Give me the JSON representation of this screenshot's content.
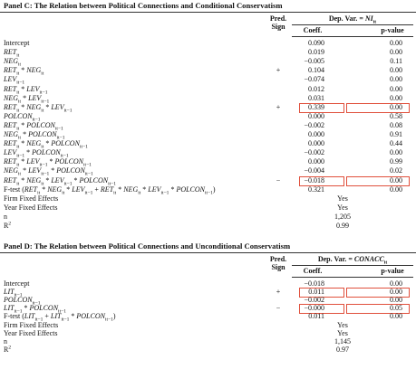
{
  "panels": [
    {
      "title": "Panel C: The Relation between Political Connections and Conditional Conservatism",
      "pred_sign_header": [
        "Pred.",
        "Sign"
      ],
      "dep_var": [
        "Dep. Var. = ",
        {
          "i": "NI"
        },
        {
          "sub": "it"
        }
      ],
      "columns": [
        "Coeff.",
        "p-value"
      ],
      "rows": [
        {
          "label": [
            "Intercept"
          ],
          "sign": "",
          "coeff": "0.090",
          "p": "0.00"
        },
        {
          "label": [
            {
              "i": "RET"
            },
            {
              "sub": "it"
            }
          ],
          "sign": "",
          "coeff": "0.019",
          "p": "0.00"
        },
        {
          "label": [
            {
              "i": "NEG"
            },
            {
              "sub": "it"
            }
          ],
          "sign": "",
          "coeff": "−0.005",
          "p": "0.11"
        },
        {
          "label": [
            {
              "i": "RET"
            },
            {
              "sub": "it"
            },
            " * ",
            {
              "i": "NEG"
            },
            {
              "sub": "it"
            }
          ],
          "sign": "+",
          "coeff": "0.104",
          "p": "0.00"
        },
        {
          "label": [
            {
              "i": "LEV"
            },
            {
              "sub": "it−1"
            }
          ],
          "sign": "",
          "coeff": "−0.074",
          "p": "0.00"
        },
        {
          "label": [
            {
              "i": "RET"
            },
            {
              "sub": "it"
            },
            " * ",
            {
              "i": "LEV"
            },
            {
              "sub": "it−1"
            }
          ],
          "sign": "",
          "coeff": "0.012",
          "p": "0.00"
        },
        {
          "label": [
            {
              "i": "NEG"
            },
            {
              "sub": "it"
            },
            " * ",
            {
              "i": "LEV"
            },
            {
              "sub": "it−1"
            }
          ],
          "sign": "",
          "coeff": "0.031",
          "p": "0.00"
        },
        {
          "label": [
            {
              "i": "RET"
            },
            {
              "sub": "it"
            },
            " * ",
            {
              "i": "NEG"
            },
            {
              "sub": "it"
            },
            " * ",
            {
              "i": "LEV"
            },
            {
              "sub": "it−1"
            }
          ],
          "sign": "+",
          "coeff": "0.339",
          "p": "0.00",
          "highlight": true
        },
        {
          "label": [
            {
              "i": "POLCON"
            },
            {
              "sub": "it−1"
            }
          ],
          "sign": "",
          "coeff": "0.000",
          "p": "0.58"
        },
        {
          "label": [
            {
              "i": "RET"
            },
            {
              "sub": "it"
            },
            " * ",
            {
              "i": "POLCON"
            },
            {
              "sub": "it−1"
            }
          ],
          "sign": "",
          "coeff": "−0.002",
          "p": "0.08"
        },
        {
          "label": [
            {
              "i": "NEG"
            },
            {
              "sub": "it"
            },
            " * ",
            {
              "i": "POLCON"
            },
            {
              "sub": "it−1"
            }
          ],
          "sign": "",
          "coeff": "0.000",
          "p": "0.91"
        },
        {
          "label": [
            {
              "i": "RET"
            },
            {
              "sub": "it"
            },
            " * ",
            {
              "i": "NEG"
            },
            {
              "sub": "it"
            },
            " * ",
            {
              "i": "POLCON"
            },
            {
              "sub": "it−1"
            }
          ],
          "sign": "",
          "coeff": "0.000",
          "p": "0.44"
        },
        {
          "label": [
            {
              "i": "LEV"
            },
            {
              "sub": "it−1"
            },
            " * ",
            {
              "i": "POLCON"
            },
            {
              "sub": "it−1"
            }
          ],
          "sign": "",
          "coeff": "−0.002",
          "p": "0.00"
        },
        {
          "label": [
            {
              "i": "RET"
            },
            {
              "sub": "it"
            },
            " * ",
            {
              "i": "LEV"
            },
            {
              "sub": "it−1"
            },
            " * ",
            {
              "i": "POLCON"
            },
            {
              "sub": "it−1"
            }
          ],
          "sign": "",
          "coeff": "0.000",
          "p": "0.99"
        },
        {
          "label": [
            {
              "i": "NEG"
            },
            {
              "sub": "it"
            },
            " * ",
            {
              "i": "LEV"
            },
            {
              "sub": "it−1"
            },
            " * ",
            {
              "i": "POLCON"
            },
            {
              "sub": "it−1"
            }
          ],
          "sign": "",
          "coeff": "−0.004",
          "p": "0.02"
        },
        {
          "label": [
            {
              "i": "RET"
            },
            {
              "sub": "it"
            },
            " * ",
            {
              "i": "NEG"
            },
            {
              "sub": "it"
            },
            " * ",
            {
              "i": "LEV"
            },
            {
              "sub": "it−1"
            },
            " * ",
            {
              "i": "POLCON"
            },
            {
              "sub": "it−1"
            }
          ],
          "sign": "−",
          "coeff": "−0.018",
          "p": "0.00",
          "highlight": true
        },
        {
          "label": [
            "F-test (",
            {
              "i": "RET"
            },
            {
              "sub": "it"
            },
            " * ",
            {
              "i": "NEG"
            },
            {
              "sub": "it"
            },
            " * ",
            {
              "i": "LEV"
            },
            {
              "sub": "it−1"
            },
            " + ",
            {
              "i": "RET"
            },
            {
              "sub": "it"
            },
            " * ",
            {
              "i": "NEG"
            },
            {
              "sub": "it"
            },
            " * ",
            {
              "i": "LEV"
            },
            {
              "sub": "it−1"
            },
            " * ",
            {
              "i": "POLCON"
            },
            {
              "sub": "it−1"
            },
            ")"
          ],
          "sign": "",
          "coeff": "0.321",
          "p": "0.00"
        }
      ],
      "footer": [
        {
          "label": [
            "Firm Fixed Effects"
          ],
          "value": "Yes"
        },
        {
          "label": [
            "Year Fixed Effects"
          ],
          "value": "Yes"
        },
        {
          "label": [
            "n"
          ],
          "value": "1,205"
        },
        {
          "label": [
            "R",
            {
              "sup": "2"
            }
          ],
          "value": "0.99"
        }
      ]
    },
    {
      "title": "Panel D: The Relation between Political Connections and Unconditional Conservatism",
      "pred_sign_header": [
        "Pred.",
        "Sign"
      ],
      "dep_var": [
        "Dep. Var. = ",
        {
          "i": "CONACC"
        },
        {
          "sub": "it"
        }
      ],
      "columns": [
        "Coeff.",
        "p-value"
      ],
      "rows": [
        {
          "label": [
            "Intercept"
          ],
          "sign": "",
          "coeff": "−0.018",
          "p": "0.00"
        },
        {
          "label": [
            {
              "i": "LIT"
            },
            {
              "sub": "it−1"
            }
          ],
          "sign": "+",
          "coeff": "0.011",
          "p": "0.00",
          "highlight": true
        },
        {
          "label": [
            {
              "i": "POLCON"
            },
            {
              "sub": "it−1"
            }
          ],
          "sign": "",
          "coeff": "−0.002",
          "p": "0.00"
        },
        {
          "label": [
            {
              "i": "LIT"
            },
            {
              "sub": "it−1"
            },
            " * ",
            {
              "i": "POLCON"
            },
            {
              "sub": "it−1"
            }
          ],
          "sign": "−",
          "coeff": "−0.000",
          "p": "0.05",
          "highlight": true
        },
        {
          "label": [
            "F-test (",
            {
              "i": "LIT"
            },
            {
              "sub": "it−1"
            },
            " + ",
            {
              "i": "LIT"
            },
            {
              "sub": "it−1"
            },
            " * ",
            {
              "i": "POLCON"
            },
            {
              "sub": "it−1"
            },
            ")"
          ],
          "sign": "",
          "coeff": "0.011",
          "p": "0.00"
        }
      ],
      "footer": [
        {
          "label": [
            "Firm Fixed Effects"
          ],
          "value": "Yes"
        },
        {
          "label": [
            "Year Fixed Effects"
          ],
          "value": "Yes"
        },
        {
          "label": [
            "n"
          ],
          "value": "1,145"
        },
        {
          "label": [
            "R",
            {
              "sup": "2"
            }
          ],
          "value": "0.97"
        }
      ]
    }
  ]
}
